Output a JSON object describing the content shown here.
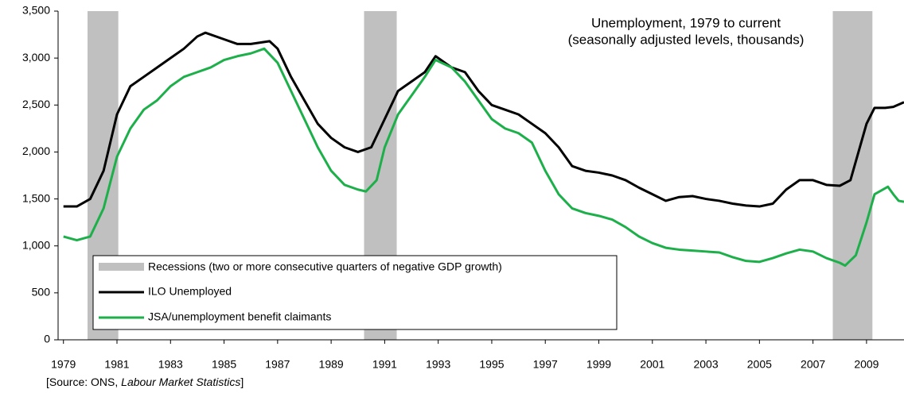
{
  "chart_data": {
    "type": "line",
    "title": "Unemployment, 1979 to current",
    "subtitle": "(seasonally adjusted levels, thousands)",
    "recession_label": "Recessions (two or more consecutive quarters of negative GDP growth)",
    "recessions": [
      [
        1979.9,
        1981.05
      ],
      [
        1990.23,
        1991.45
      ],
      [
        2007.74,
        2009.22
      ]
    ],
    "recession_color": "#c0c0c0",
    "source": [
      "[Source: ONS, ",
      "Labour Market Statistics",
      "]"
    ],
    "xlim": [
      1978.8,
      2010.4
    ],
    "xticks": [
      1979,
      1981,
      1983,
      1985,
      1987,
      1989,
      1991,
      1993,
      1995,
      1997,
      1999,
      2001,
      2003,
      2005,
      2007,
      2009
    ],
    "ylim": [
      0,
      3500
    ],
    "yticks": [
      0,
      500,
      {
        "value": 1000,
        "label": "1,000"
      },
      {
        "value": 1500,
        "label": "1,500"
      },
      {
        "value": 2000,
        "label": "2,000"
      },
      {
        "value": 2500,
        "label": "2,500"
      },
      {
        "value": 3000,
        "label": "3,000"
      },
      {
        "value": 3500,
        "label": "3,500"
      }
    ],
    "grid": false,
    "series": [
      {
        "name": "ILO Unemployed",
        "color": "#000000",
        "x": [
          1979,
          1979.5,
          1980,
          1980.5,
          1981,
          1981.5,
          1982,
          1982.5,
          1983,
          1983.5,
          1984,
          1984.3,
          1985,
          1985.5,
          1986,
          1986.7,
          1987,
          1987.5,
          1988,
          1988.5,
          1989,
          1989.5,
          1990,
          1990.5,
          1991,
          1991.5,
          1992,
          1992.5,
          1992.9,
          1993.5,
          1994,
          1994.5,
          1995,
          1995.5,
          1996,
          1996.5,
          1997,
          1997.5,
          1998,
          1998.5,
          1999,
          1999.5,
          2000,
          2000.5,
          2001,
          2001.5,
          2002,
          2002.5,
          2003,
          2003.5,
          2004,
          2004.5,
          2005,
          2005.5,
          2006,
          2006.5,
          2007,
          2007.5,
          2008,
          2008.4,
          2008.7,
          2009,
          2009.3,
          2009.7,
          2010,
          2010.4
        ],
        "values": [
          1420,
          1420,
          1500,
          1800,
          2400,
          2700,
          2800,
          2900,
          3000,
          3100,
          3230,
          3270,
          3200,
          3150,
          3150,
          3180,
          3100,
          2800,
          2550,
          2300,
          2150,
          2050,
          2000,
          2050,
          2350,
          2650,
          2750,
          2850,
          3020,
          2900,
          2850,
          2650,
          2500,
          2450,
          2400,
          2300,
          2200,
          2050,
          1850,
          1800,
          1780,
          1750,
          1700,
          1620,
          1550,
          1480,
          1520,
          1530,
          1500,
          1480,
          1450,
          1430,
          1420,
          1450,
          1600,
          1700,
          1700,
          1650,
          1640,
          1700,
          2000,
          2300,
          2470,
          2470,
          2480,
          2530
        ]
      },
      {
        "name": "JSA/unemployment benefit claimants",
        "color": "#1db04a",
        "x": [
          1979,
          1979.5,
          1980,
          1980.5,
          1981,
          1981.5,
          1982,
          1982.5,
          1983,
          1983.5,
          1984,
          1984.5,
          1985,
          1985.5,
          1986,
          1986.5,
          1987,
          1987.5,
          1988,
          1988.5,
          1989,
          1989.5,
          1990,
          1990.3,
          1990.7,
          1991,
          1991.5,
          1992,
          1992.5,
          1992.9,
          1993.5,
          1994,
          1994.5,
          1995,
          1995.5,
          1996,
          1996.5,
          1997,
          1997.5,
          1998,
          1998.5,
          1999,
          1999.5,
          2000,
          2000.5,
          2001,
          2001.5,
          2002,
          2002.5,
          2003,
          2003.5,
          2004,
          2004.5,
          2005,
          2005.5,
          2006,
          2006.5,
          2007,
          2007.5,
          2008,
          2008.2,
          2008.6,
          2009,
          2009.3,
          2009.8,
          2010,
          2010.2,
          2010.4
        ],
        "values": [
          1100,
          1060,
          1100,
          1400,
          1950,
          2250,
          2450,
          2550,
          2700,
          2800,
          2850,
          2900,
          2980,
          3020,
          3050,
          3100,
          2950,
          2650,
          2350,
          2050,
          1800,
          1650,
          1600,
          1580,
          1700,
          2050,
          2400,
          2600,
          2800,
          2980,
          2900,
          2750,
          2550,
          2350,
          2250,
          2200,
          2100,
          1800,
          1550,
          1400,
          1350,
          1320,
          1280,
          1200,
          1100,
          1030,
          980,
          960,
          950,
          940,
          930,
          880,
          840,
          830,
          870,
          920,
          960,
          940,
          870,
          820,
          790,
          900,
          1250,
          1550,
          1630,
          1550,
          1480,
          1470
        ]
      }
    ]
  }
}
